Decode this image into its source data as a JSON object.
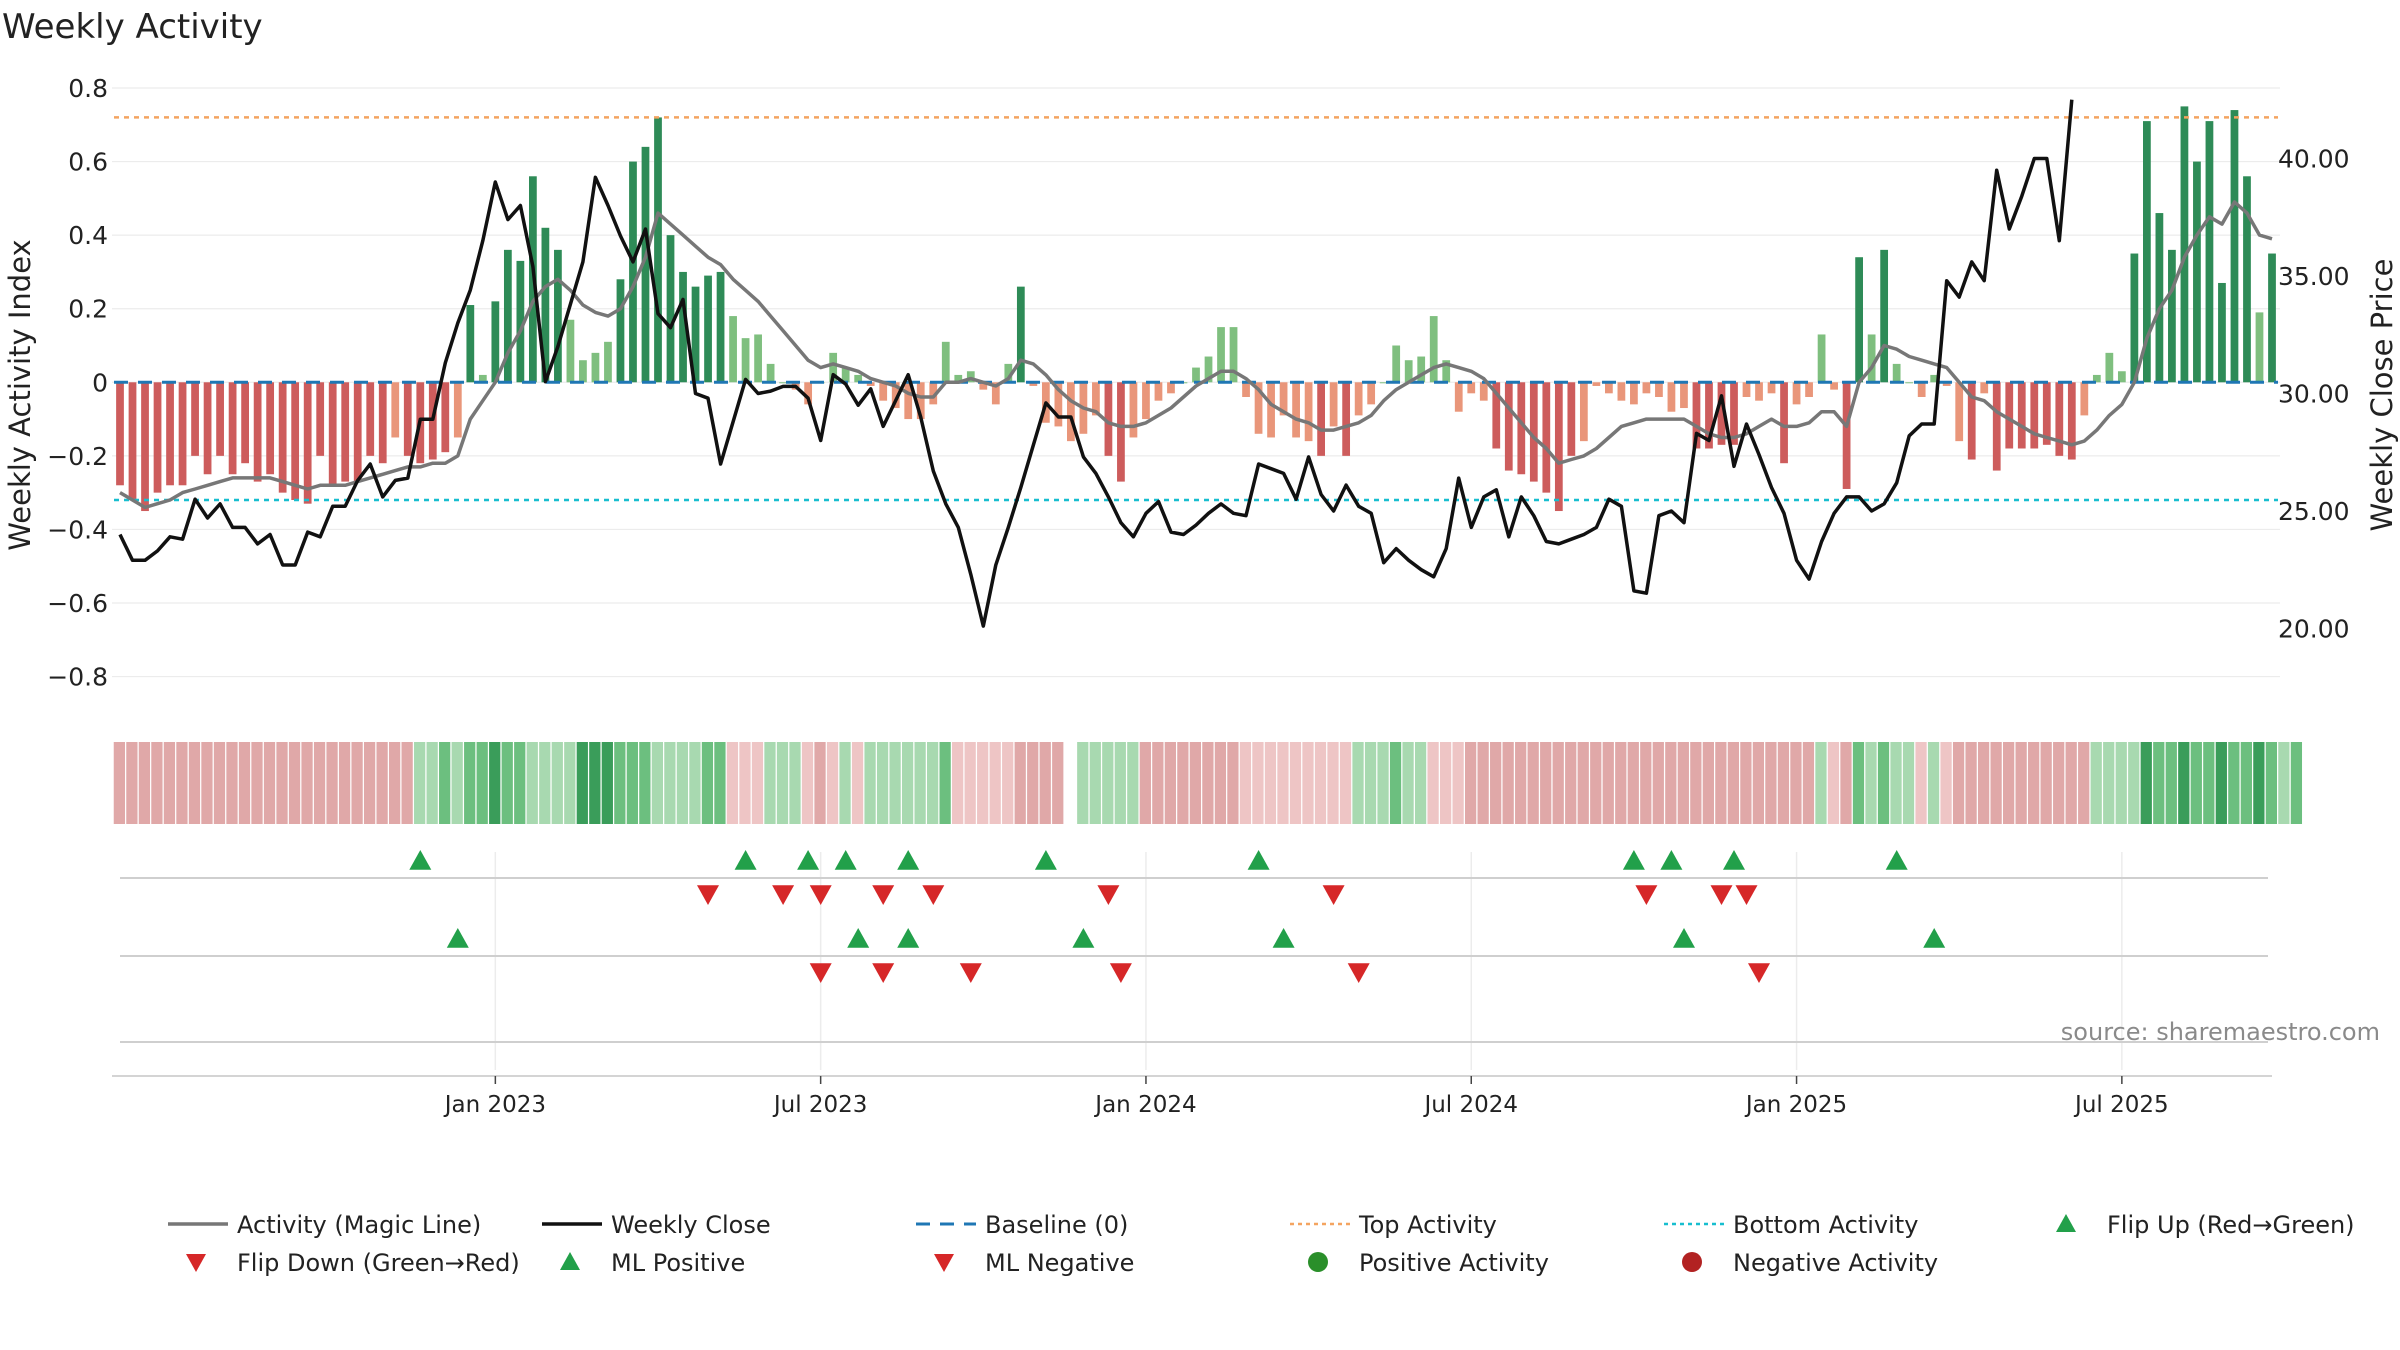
{
  "title": "Weekly Activity",
  "source": "source: sharemaestro.com",
  "colors": {
    "posStrong": "#2e8b57",
    "posWeak": "#7fbf7f",
    "negStrong": "#cd5c5c",
    "negWeak": "#e9967a",
    "magic": "#777777",
    "close": "#111111",
    "baseline": "#1f77b4",
    "top": "#f4a460",
    "bottom": "#17becf",
    "flipUp": "#22a04a",
    "flipDown": "#d62728",
    "posDot": "#2a8f2a",
    "negDot": "#b22222"
  },
  "chart_data": {
    "type": "bar+line",
    "title": "Weekly Activity",
    "ylabel": "Weekly Activity Index",
    "y2label": "Weekly Close Price",
    "ylim": [
      -0.88,
      0.8
    ],
    "y2lim": [
      16.7,
      43.0
    ],
    "yticks": [
      0.8,
      0.6,
      0.4,
      0.2,
      0,
      -0.2,
      -0.4,
      -0.6,
      -0.8
    ],
    "ytick_labels": [
      "0.8",
      "0.6",
      "0.4",
      "0.2",
      "0",
      "−0.2",
      "−0.4",
      "−0.6",
      "−0.8"
    ],
    "y2ticks": [
      40,
      35,
      30,
      25,
      20
    ],
    "y2tick_labels": [
      "40.00",
      "35.00",
      "30.00",
      "25.00",
      "20.00"
    ],
    "top_activity": 0.72,
    "bottom_activity": -0.32,
    "baseline": 0,
    "xticks": [
      {
        "label": "Jan 2023",
        "week": 30
      },
      {
        "label": "Jul 2023",
        "week": 56
      },
      {
        "label": "Jan 2024",
        "week": 82
      },
      {
        "label": "Jul 2024",
        "week": 108
      },
      {
        "label": "Jan 2025",
        "week": 134
      },
      {
        "label": "Jul 2025",
        "week": 160
      }
    ],
    "activity": [
      -0.28,
      -0.32,
      -0.35,
      -0.3,
      -0.28,
      -0.28,
      -0.2,
      -0.25,
      -0.2,
      -0.25,
      -0.22,
      -0.27,
      -0.25,
      -0.3,
      -0.32,
      -0.33,
      -0.2,
      -0.28,
      -0.27,
      -0.27,
      -0.2,
      -0.22,
      -0.15,
      -0.2,
      -0.22,
      -0.21,
      -0.19,
      -0.15,
      0.21,
      0.02,
      0.22,
      0.36,
      0.33,
      0.56,
      0.42,
      0.36,
      0.17,
      0.06,
      0.08,
      0.11,
      0.28,
      0.6,
      0.64,
      0.72,
      0.4,
      0.3,
      0.26,
      0.29,
      0.3,
      0.18,
      0.12,
      0.13,
      0.05,
      0.0,
      -0.02,
      -0.06,
      0.0,
      0.08,
      0.04,
      0.02,
      -0.01,
      -0.05,
      -0.07,
      -0.1,
      -0.1,
      -0.06,
      0.11,
      0.02,
      0.03,
      -0.02,
      -0.06,
      0.05,
      0.26,
      -0.01,
      -0.11,
      -0.12,
      -0.16,
      -0.14,
      -0.09,
      -0.2,
      -0.27,
      -0.15,
      -0.1,
      -0.05,
      -0.03,
      0.0,
      0.04,
      0.07,
      0.15,
      0.15,
      -0.04,
      -0.14,
      -0.15,
      -0.09,
      -0.15,
      -0.16,
      -0.2,
      -0.12,
      -0.2,
      -0.09,
      -0.06,
      0.0,
      0.1,
      0.06,
      0.07,
      0.18,
      0.06,
      -0.08,
      -0.03,
      -0.05,
      -0.18,
      -0.24,
      -0.25,
      -0.27,
      -0.3,
      -0.35,
      -0.2,
      -0.16,
      -0.01,
      -0.03,
      -0.05,
      -0.06,
      -0.03,
      -0.04,
      -0.08,
      -0.07,
      -0.18,
      -0.18,
      -0.17,
      -0.17,
      -0.04,
      -0.05,
      -0.03,
      -0.22,
      -0.06,
      -0.04,
      0.13,
      -0.02,
      -0.29,
      0.34,
      0.13,
      0.36,
      0.05,
      0.0,
      -0.04,
      0.02,
      -0.01,
      -0.16,
      -0.21,
      -0.03,
      -0.24,
      -0.18,
      -0.18,
      -0.18,
      -0.17,
      -0.2,
      -0.21,
      -0.09,
      0.02,
      0.08,
      0.03,
      0.35,
      0.71,
      0.46,
      0.36,
      0.75,
      0.6,
      0.71,
      0.27,
      0.74,
      0.56,
      0.19,
      0.35
    ],
    "magic_line": [
      -0.3,
      -0.32,
      -0.34,
      -0.33,
      -0.32,
      -0.3,
      -0.29,
      -0.28,
      -0.27,
      -0.26,
      -0.26,
      -0.26,
      -0.26,
      -0.27,
      -0.28,
      -0.29,
      -0.28,
      -0.28,
      -0.28,
      -0.27,
      -0.26,
      -0.25,
      -0.24,
      -0.23,
      -0.23,
      -0.22,
      -0.22,
      -0.2,
      -0.1,
      -0.05,
      0.0,
      0.08,
      0.14,
      0.22,
      0.26,
      0.28,
      0.25,
      0.21,
      0.19,
      0.18,
      0.2,
      0.26,
      0.34,
      0.46,
      0.43,
      0.4,
      0.37,
      0.34,
      0.32,
      0.28,
      0.25,
      0.22,
      0.18,
      0.14,
      0.1,
      0.06,
      0.04,
      0.05,
      0.04,
      0.03,
      0.01,
      0.0,
      -0.01,
      -0.03,
      -0.04,
      -0.04,
      0.0,
      0.0,
      0.01,
      0.0,
      -0.01,
      0.01,
      0.06,
      0.05,
      0.02,
      -0.02,
      -0.05,
      -0.07,
      -0.08,
      -0.11,
      -0.12,
      -0.12,
      -0.11,
      -0.09,
      -0.07,
      -0.04,
      -0.01,
      0.01,
      0.03,
      0.03,
      0.01,
      -0.02,
      -0.06,
      -0.08,
      -0.1,
      -0.11,
      -0.13,
      -0.13,
      -0.12,
      -0.11,
      -0.09,
      -0.05,
      -0.02,
      0.0,
      0.02,
      0.04,
      0.05,
      0.04,
      0.03,
      0.01,
      -0.03,
      -0.07,
      -0.11,
      -0.15,
      -0.18,
      -0.22,
      -0.21,
      -0.2,
      -0.18,
      -0.15,
      -0.12,
      -0.11,
      -0.1,
      -0.1,
      -0.1,
      -0.1,
      -0.12,
      -0.14,
      -0.15,
      -0.15,
      -0.14,
      -0.12,
      -0.1,
      -0.12,
      -0.12,
      -0.11,
      -0.08,
      -0.08,
      -0.12,
      0.0,
      0.04,
      0.1,
      0.09,
      0.07,
      0.06,
      0.05,
      0.04,
      0.0,
      -0.04,
      -0.05,
      -0.08,
      -0.1,
      -0.12,
      -0.14,
      -0.15,
      -0.16,
      -0.17,
      -0.16,
      -0.13,
      -0.09,
      -0.06,
      0.0,
      0.12,
      0.2,
      0.25,
      0.34,
      0.4,
      0.45,
      0.43,
      0.49,
      0.46,
      0.4,
      0.39
    ],
    "weekly_close": [
      24.0,
      22.9,
      22.9,
      23.3,
      23.9,
      23.8,
      25.5,
      24.7,
      25.3,
      24.3,
      24.3,
      23.6,
      24.0,
      22.7,
      22.7,
      24.1,
      23.9,
      25.2,
      25.2,
      26.3,
      27.0,
      25.6,
      26.3,
      26.4,
      28.9,
      28.9,
      31.3,
      33.0,
      34.4,
      36.5,
      39.0,
      37.4,
      38.0,
      35.4,
      30.5,
      32.0,
      33.8,
      35.6,
      39.2,
      38.0,
      36.7,
      35.6,
      37.0,
      33.4,
      32.8,
      34.0,
      30.0,
      29.8,
      27.0,
      28.8,
      30.6,
      30.0,
      30.1,
      30.3,
      30.3,
      29.8,
      28.0,
      30.8,
      30.4,
      29.5,
      30.2,
      28.6,
      29.7,
      30.8,
      29.0,
      26.7,
      25.3,
      24.3,
      22.3,
      20.1,
      22.7,
      24.3,
      26.0,
      27.8,
      29.6,
      29.0,
      29.0,
      27.3,
      26.6,
      25.6,
      24.5,
      23.9,
      24.9,
      25.4,
      24.1,
      24.0,
      24.4,
      24.9,
      25.3,
      24.9,
      24.8,
      27.0,
      26.8,
      26.6,
      25.5,
      27.3,
      25.7,
      25.0,
      26.1,
      25.2,
      24.9,
      22.8,
      23.4,
      22.9,
      22.5,
      22.2,
      23.4,
      26.4,
      24.3,
      25.6,
      25.9,
      23.9,
      25.6,
      24.8,
      23.7,
      23.6,
      23.8,
      24.0,
      24.3,
      25.5,
      25.2,
      21.6,
      21.5,
      24.8,
      25.0,
      24.5,
      28.3,
      28.0,
      29.9,
      26.9,
      28.7,
      27.4,
      26.0,
      24.9,
      22.9,
      22.1,
      23.7,
      24.9,
      25.6,
      25.6,
      25.0,
      25.3,
      26.2,
      28.2,
      28.7,
      28.7,
      34.8,
      34.1,
      35.6,
      34.8,
      39.5,
      37.0,
      38.4,
      40.0,
      40.0,
      36.5,
      42.5
    ],
    "strip": [
      -2,
      -2,
      -2,
      -2,
      -2,
      -2,
      -2,
      -2,
      -2,
      -2,
      -2,
      -2,
      -2,
      -2,
      -2,
      -2,
      -2,
      -2,
      -2,
      -2,
      -2,
      -2,
      -2,
      -2,
      1,
      1,
      2,
      1,
      2,
      2,
      3,
      2,
      2,
      1,
      1,
      1,
      1,
      3,
      3,
      3,
      2,
      2,
      2,
      1,
      1,
      1,
      1,
      2,
      2,
      -1,
      -1,
      -1,
      1,
      1,
      1,
      -1,
      -2,
      -1,
      1,
      -1,
      1,
      1,
      1,
      1,
      1,
      1,
      2,
      -1,
      -1,
      -1,
      -1,
      -1,
      -2,
      -2,
      -2,
      -2,
      0,
      1,
      1,
      1,
      1,
      1,
      -2,
      -2,
      -2,
      -2,
      -2,
      -2,
      -2,
      -2,
      -1,
      -1,
      -1,
      -1,
      -1,
      -1,
      -1,
      -1,
      -1,
      1,
      1,
      1,
      2,
      1,
      1,
      -1,
      -1,
      -1,
      -2,
      -2,
      -2,
      -2,
      -2,
      -2,
      -2,
      -2,
      -2,
      -2,
      -2,
      -2,
      -2,
      -2,
      -2,
      -2,
      -2,
      -2,
      -2,
      -2,
      -2,
      -2,
      -2,
      -2,
      -2,
      -2,
      -2,
      -2,
      1,
      -1,
      -2,
      2,
      1,
      2,
      1,
      1,
      -1,
      1,
      -1,
      -2,
      -2,
      -2,
      -2,
      -2,
      -2,
      -2,
      -2,
      -2,
      -2,
      -2,
      1,
      1,
      1,
      1,
      3,
      2,
      2,
      3,
      2,
      2,
      3,
      2,
      2,
      3,
      2,
      1,
      2
    ],
    "flip_up": [
      24,
      50,
      55,
      58,
      63,
      74,
      91,
      121,
      124,
      129,
      142
    ],
    "flip_down": [
      47,
      53,
      56,
      61,
      65,
      79,
      97,
      122,
      128,
      130
    ],
    "ml_positive": [
      27,
      59,
      63,
      77,
      93,
      125,
      145
    ],
    "ml_negative": [
      56,
      61,
      68,
      80,
      99,
      131
    ]
  },
  "legend": [
    {
      "label": "Activity (Magic Line)",
      "kind": "line",
      "color": "#777777"
    },
    {
      "label": "Weekly Close",
      "kind": "line",
      "color": "#111111"
    },
    {
      "label": "Baseline (0)",
      "kind": "dash",
      "color": "#1f77b4"
    },
    {
      "label": "Top Activity",
      "kind": "dot",
      "color": "#f4a460"
    },
    {
      "label": "Bottom Activity",
      "kind": "dot",
      "color": "#17becf"
    },
    {
      "label": "Flip Up (Red→Green)",
      "kind": "tri-up",
      "color": "#22a04a"
    },
    {
      "label": "Flip Down (Green→Red)",
      "kind": "tri-down",
      "color": "#d62728"
    },
    {
      "label": "ML Positive",
      "kind": "tri-up",
      "color": "#22a04a"
    },
    {
      "label": "ML Negative",
      "kind": "tri-down",
      "color": "#d62728"
    },
    {
      "label": "Positive Activity",
      "kind": "circle",
      "color": "#2a8f2a"
    },
    {
      "label": "Negative Activity",
      "kind": "circle",
      "color": "#b22222"
    }
  ]
}
